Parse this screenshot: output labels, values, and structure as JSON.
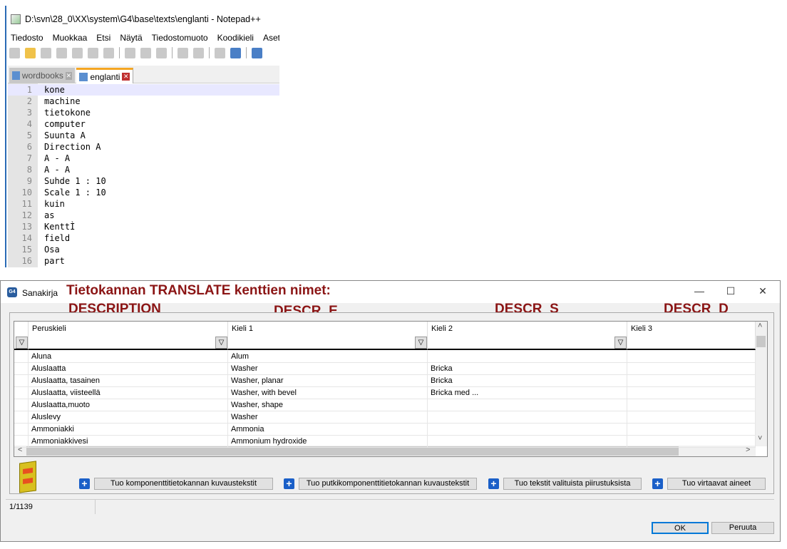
{
  "notepad": {
    "title": "D:\\svn\\28_0\\XX\\system\\G4\\base\\texts\\englanti - Notepad++",
    "menu": [
      "Tiedosto",
      "Muokkaa",
      "Etsi",
      "Näytä",
      "Tiedostomuoto",
      "Koodikieli",
      "Asetukset"
    ],
    "tabs": [
      {
        "label": "wordbooks",
        "active": false
      },
      {
        "label": "englanti",
        "active": true
      }
    ],
    "lines": [
      "kone",
      "machine",
      "tietokone",
      "computer",
      "Suunta A",
      "Direction A",
      "A - A",
      "A - A",
      "Suhde 1 : 10",
      "Scale 1 : 10",
      "kuin",
      "as",
      "KenttÌ",
      "field",
      "Osa",
      "part"
    ]
  },
  "dialog": {
    "title": "Sanakirja",
    "app_icon_label": "G4",
    "annotation": {
      "heading": "Tietokannan TRANSLATE kenttien nimet:",
      "fields": [
        "DESCRIPTION",
        "DESCR_E",
        "DESCR_S",
        "DESCR_D"
      ],
      "color": "#8b1515"
    },
    "columns": [
      "Peruskieli",
      "Kieli 1",
      "Kieli 2",
      "Kieli 3"
    ],
    "rows": [
      [
        "Aluna",
        "Alum",
        "",
        ""
      ],
      [
        "Aluslaatta",
        "Washer",
        "Bricka",
        ""
      ],
      [
        "Aluslaatta, tasainen",
        "Washer, planar",
        "Bricka",
        ""
      ],
      [
        "Aluslaatta, viisteellä",
        "Washer, with bevel",
        "Bricka med ...",
        ""
      ],
      [
        "Aluslaatta,muoto",
        "Washer, shape",
        "",
        ""
      ],
      [
        "Aluslevy",
        "Washer",
        "",
        ""
      ],
      [
        "Ammoniakki",
        "Ammonia",
        "",
        ""
      ],
      [
        "Ammoniakkivesi",
        "Ammonium hydroxide",
        "",
        ""
      ]
    ],
    "import_buttons": [
      "Tuo komponenttitietokannan kuvaustekstit",
      "Tuo putkikomponenttitietokannan kuvaustekstit",
      "Tuo tekstit valituista piirustuksista",
      "Tuo virtaavat aineet"
    ],
    "status": "1/1139",
    "ok": "OK",
    "cancel": "Peruuta"
  }
}
